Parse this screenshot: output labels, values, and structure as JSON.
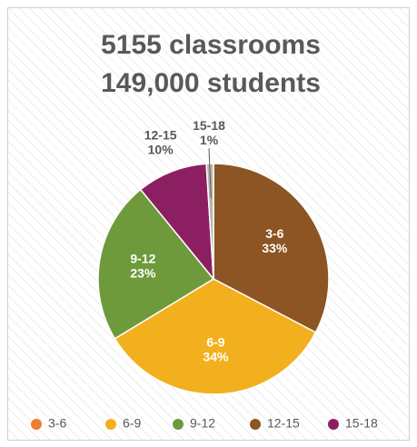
{
  "chart_data": {
    "type": "pie",
    "title": [
      "5155 classrooms",
      "149,000 students"
    ],
    "categories": [
      "3-6",
      "6-9",
      "9-12",
      "12-15",
      "15-18"
    ],
    "values": [
      33,
      34,
      23,
      10,
      1
    ],
    "value_labels": [
      "33%",
      "34%",
      "23%",
      "10%",
      "1%"
    ],
    "colors": [
      "#8c5523",
      "#f2b01e",
      "#6e9a3b",
      "#8c1f62",
      "#b8b3ad"
    ],
    "legend_colors": [
      "#ed7d31",
      "#f2b01e",
      "#6e9a3b",
      "#8c5523",
      "#8c1f62"
    ],
    "legend": "bottom"
  }
}
